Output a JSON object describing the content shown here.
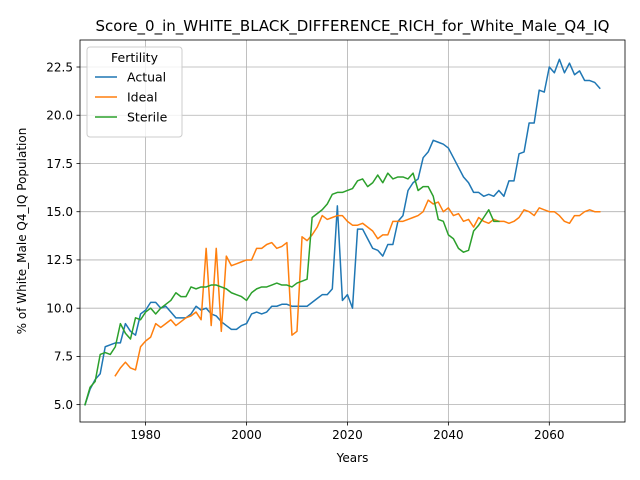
{
  "chart_data": {
    "type": "line",
    "title": "Score_0_in_WHITE_BLACK_DIFFERENCE_RICH_for_White_Male_Q4_IQ",
    "xlabel": "Years",
    "ylabel": "% of White_Male Q4_IQ Population",
    "xlim": [
      1967,
      2075
    ],
    "ylim": [
      4.1,
      23.9
    ],
    "xticks": [
      1980,
      2000,
      2020,
      2040,
      2060
    ],
    "yticks": [
      5.0,
      7.5,
      10.0,
      12.5,
      15.0,
      17.5,
      20.0,
      22.5
    ],
    "xtick_labels": [
      "1980",
      "2000",
      "2020",
      "2040",
      "2060"
    ],
    "ytick_labels": [
      "5.0",
      "7.5",
      "10.0",
      "12.5",
      "15.0",
      "17.5",
      "20.0",
      "22.5"
    ],
    "grid": true,
    "legend": {
      "title": "Fertility",
      "placement": "top-left"
    },
    "series": [
      {
        "name": "Actual",
        "color": "#1f77b4",
        "x": [
          1968,
          1969,
          1970,
          1971,
          1972,
          1973,
          1974,
          1975,
          1976,
          1977,
          1978,
          1979,
          1980,
          1981,
          1982,
          1983,
          1984,
          1985,
          1986,
          1987,
          1988,
          1989,
          1990,
          1991,
          1992,
          1993,
          1994,
          1995,
          1996,
          1997,
          1998,
          1999,
          2000,
          2001,
          2002,
          2003,
          2004,
          2005,
          2006,
          2007,
          2008,
          2009,
          2010,
          2011,
          2012,
          2013,
          2014,
          2015,
          2016,
          2017,
          2018,
          2019,
          2020,
          2021,
          2022,
          2023,
          2024,
          2025,
          2026,
          2027,
          2028,
          2029,
          2030,
          2031,
          2032,
          2033,
          2034,
          2035,
          2036,
          2037,
          2038,
          2039,
          2040,
          2041,
          2042,
          2043,
          2044,
          2045,
          2046,
          2047,
          2048,
          2049,
          2050,
          2051,
          2052,
          2053,
          2054,
          2055,
          2056,
          2057,
          2058,
          2059,
          2060,
          2061,
          2062,
          2063,
          2064,
          2065,
          2066,
          2067,
          2068,
          2069,
          2070
        ],
        "y": [
          5.0,
          5.8,
          6.3,
          6.6,
          8.0,
          8.1,
          8.2,
          8.2,
          9.2,
          8.8,
          8.6,
          9.7,
          9.9,
          10.3,
          10.3,
          10.0,
          10.1,
          9.8,
          9.5,
          9.5,
          9.5,
          9.7,
          10.1,
          9.9,
          10.0,
          9.7,
          9.6,
          9.3,
          9.1,
          8.9,
          8.9,
          9.1,
          9.2,
          9.7,
          9.8,
          9.7,
          9.8,
          10.1,
          10.1,
          10.2,
          10.2,
          10.1,
          10.1,
          10.1,
          10.1,
          10.3,
          10.5,
          10.7,
          10.7,
          11.0,
          15.3,
          10.4,
          10.7,
          10.0,
          14.1,
          14.1,
          13.6,
          13.1,
          13.0,
          12.7,
          13.3,
          13.3,
          14.5,
          14.8,
          16.1,
          16.5,
          16.7,
          17.8,
          18.1,
          18.7,
          18.6,
          18.5,
          18.3,
          17.8,
          17.3,
          16.8,
          16.5,
          16.0,
          16.0,
          15.8,
          15.9,
          15.8,
          16.1,
          15.8,
          16.6,
          16.6,
          18.0,
          18.1,
          19.6,
          19.6,
          21.3,
          21.2,
          22.5,
          22.2,
          22.9,
          22.2,
          22.7,
          22.1,
          22.3,
          21.8,
          21.8,
          21.7,
          21.4
        ]
      },
      {
        "name": "Ideal",
        "color": "#ff7f0e",
        "x": [
          1974,
          1975,
          1976,
          1977,
          1978,
          1979,
          1980,
          1981,
          1982,
          1983,
          1984,
          1985,
          1986,
          1987,
          1988,
          1989,
          1990,
          1991,
          1992,
          1993,
          1994,
          1995,
          1996,
          1997,
          1998,
          1999,
          2000,
          2001,
          2002,
          2003,
          2004,
          2005,
          2006,
          2007,
          2008,
          2009,
          2010,
          2011,
          2012,
          2013,
          2014,
          2015,
          2016,
          2017,
          2018,
          2019,
          2020,
          2021,
          2022,
          2023,
          2024,
          2025,
          2026,
          2027,
          2028,
          2029,
          2030,
          2031,
          2032,
          2033,
          2034,
          2035,
          2036,
          2037,
          2038,
          2039,
          2040,
          2041,
          2042,
          2043,
          2044,
          2045,
          2046,
          2047,
          2048,
          2049,
          2050,
          2051,
          2052,
          2053,
          2054,
          2055,
          2056,
          2057,
          2058,
          2059,
          2060,
          2061,
          2062,
          2063,
          2064,
          2065,
          2066,
          2067,
          2068,
          2069,
          2070
        ],
        "y": [
          6.5,
          6.9,
          7.2,
          6.9,
          6.8,
          8.0,
          8.3,
          8.5,
          9.2,
          9.0,
          9.2,
          9.4,
          9.1,
          9.3,
          9.5,
          9.6,
          9.8,
          9.4,
          13.1,
          9.1,
          13.1,
          8.8,
          12.7,
          12.2,
          12.3,
          12.4,
          12.5,
          12.5,
          13.1,
          13.1,
          13.3,
          13.4,
          13.1,
          13.2,
          13.4,
          8.6,
          8.8,
          13.7,
          13.5,
          13.8,
          14.2,
          14.8,
          14.6,
          14.7,
          14.8,
          14.8,
          14.5,
          14.3,
          14.3,
          14.4,
          14.2,
          14.0,
          13.6,
          13.8,
          13.8,
          14.5,
          14.5,
          14.5,
          14.6,
          14.7,
          14.8,
          15.0,
          15.6,
          15.4,
          15.5,
          15.0,
          15.2,
          14.8,
          14.9,
          14.5,
          14.6,
          14.2,
          14.7,
          14.5,
          14.4,
          14.6,
          14.5,
          14.5,
          14.4,
          14.5,
          14.7,
          15.1,
          15.0,
          14.8,
          15.2,
          15.1,
          15.0,
          15.0,
          14.8,
          14.5,
          14.4,
          14.8,
          14.8,
          15.0,
          15.1,
          15.0,
          15.0
        ]
      },
      {
        "name": "Sterile",
        "color": "#2ca02c",
        "x": [
          1968,
          1969,
          1970,
          1971,
          1972,
          1973,
          1974,
          1975,
          1976,
          1977,
          1978,
          1979,
          1980,
          1981,
          1982,
          1983,
          1984,
          1985,
          1986,
          1987,
          1988,
          1989,
          1990,
          1991,
          1992,
          1993,
          1994,
          1995,
          1996,
          1997,
          1998,
          1999,
          2000,
          2001,
          2002,
          2003,
          2004,
          2005,
          2006,
          2007,
          2008,
          2009,
          2010,
          2011,
          2012,
          2013,
          2014,
          2015,
          2016,
          2017,
          2018,
          2019,
          2020,
          2021,
          2022,
          2023,
          2024,
          2025,
          2026,
          2027,
          2028,
          2029,
          2030,
          2031,
          2032,
          2033,
          2034,
          2035,
          2036,
          2037,
          2038,
          2039,
          2040,
          2041,
          2042,
          2043,
          2044,
          2045,
          2046,
          2047,
          2048,
          2049,
          2050
        ],
        "y": [
          5.0,
          5.9,
          6.2,
          7.6,
          7.7,
          7.6,
          8.0,
          9.2,
          8.7,
          8.4,
          9.5,
          9.4,
          9.8,
          10.0,
          9.7,
          10.0,
          10.2,
          10.4,
          10.8,
          10.6,
          10.6,
          11.1,
          11.0,
          11.1,
          11.1,
          11.2,
          11.2,
          11.1,
          11.0,
          10.8,
          10.7,
          10.6,
          10.4,
          10.8,
          11.0,
          11.1,
          11.1,
          11.2,
          11.3,
          11.2,
          11.2,
          11.1,
          11.3,
          11.4,
          11.5,
          14.7,
          14.9,
          15.1,
          15.4,
          15.9,
          16.0,
          16.0,
          16.1,
          16.2,
          16.6,
          16.7,
          16.3,
          16.5,
          16.9,
          16.5,
          17.0,
          16.7,
          16.8,
          16.8,
          16.7,
          17.0,
          16.1,
          16.3,
          16.3,
          15.8,
          14.6,
          14.5,
          13.8,
          13.6,
          13.1,
          12.9,
          13.0,
          14.0,
          14.3,
          14.7,
          15.1,
          14.5,
          14.5
        ]
      }
    ]
  }
}
